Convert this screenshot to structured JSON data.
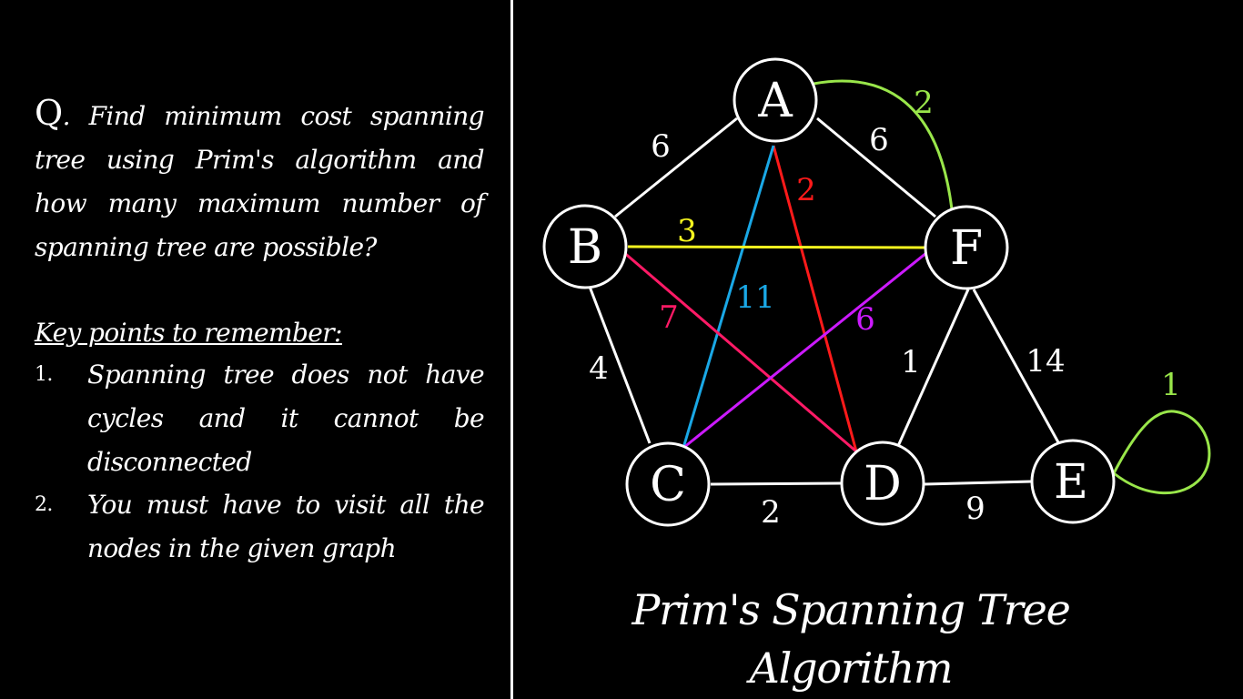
{
  "question": {
    "prefix": "Q",
    "text": ". Find minimum cost spanning tree using Prim's algorithm and how many maximum number of spanning tree are possible?"
  },
  "key_points": {
    "heading": "Key points to remember:",
    "items": [
      {
        "num": "1.",
        "text": "Spanning tree does not have cycles and it cannot be disconnected"
      },
      {
        "num": "2.",
        "text": "You must have to visit all the nodes in the given graph"
      }
    ]
  },
  "graph": {
    "title": "Prim's Spanning Tree Algorithm",
    "nodes": [
      "A",
      "B",
      "C",
      "D",
      "E",
      "F"
    ],
    "edges": [
      {
        "from": "A",
        "to": "B",
        "weight": "6",
        "color": "#ffffff"
      },
      {
        "from": "A",
        "to": "F",
        "weight": "6",
        "color": "#ffffff"
      },
      {
        "from": "A",
        "to": "F",
        "weight": "2",
        "color": "#99e64a",
        "curved": true
      },
      {
        "from": "A",
        "to": "D",
        "weight": "2",
        "color": "#ff1a1a"
      },
      {
        "from": "A",
        "to": "C",
        "weight": "11",
        "color": "#1aa8e6"
      },
      {
        "from": "B",
        "to": "F",
        "weight": "3",
        "color": "#f5f51f"
      },
      {
        "from": "B",
        "to": "D",
        "weight": "7",
        "color": "#ff1a66"
      },
      {
        "from": "B",
        "to": "C",
        "weight": "4",
        "color": "#ffffff"
      },
      {
        "from": "C",
        "to": "F",
        "weight": "6",
        "color": "#cc1aff"
      },
      {
        "from": "C",
        "to": "D",
        "weight": "2",
        "color": "#ffffff"
      },
      {
        "from": "D",
        "to": "F",
        "weight": "1",
        "color": "#ffffff"
      },
      {
        "from": "D",
        "to": "E",
        "weight": "9",
        "color": "#ffffff"
      },
      {
        "from": "F",
        "to": "E",
        "weight": "14",
        "color": "#ffffff"
      },
      {
        "from": "E",
        "to": "E",
        "weight": "1",
        "color": "#99e64a",
        "self_loop": true
      }
    ]
  }
}
